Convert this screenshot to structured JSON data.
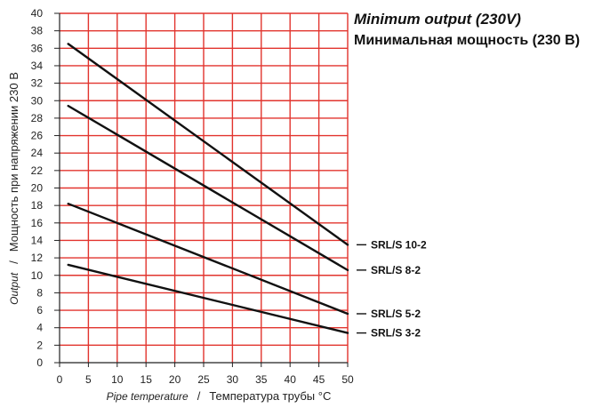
{
  "chart_data": {
    "type": "line",
    "title": "Minimum output (230V)",
    "subtitle": "Минимальная мощность (230 В)",
    "xlabel_en": "Pipe temperature",
    "xlabel_sep": "/",
    "xlabel_ru": "Температура трубы °C",
    "ylabel_en": "Output",
    "ylabel_sep": "/",
    "ylabel_ru": "Мощность при напряжении 230 В",
    "xlim": [
      0,
      50
    ],
    "ylim": [
      0,
      40
    ],
    "xticks": [
      0,
      5,
      10,
      15,
      20,
      25,
      30,
      35,
      40,
      45,
      50
    ],
    "yticks": [
      0,
      2,
      4,
      6,
      8,
      10,
      12,
      14,
      16,
      18,
      20,
      22,
      24,
      26,
      28,
      30,
      32,
      34,
      36,
      38,
      40
    ],
    "grid": true,
    "grid_color": "#e2342e",
    "line_color": "#111111",
    "legend_placement": "right",
    "series": [
      {
        "name": "SRL/S 10-2",
        "x": [
          1.5,
          50
        ],
        "y": [
          36.5,
          13.5
        ]
      },
      {
        "name": "SRL/S 8-2",
        "x": [
          1.5,
          50
        ],
        "y": [
          29.4,
          10.6
        ]
      },
      {
        "name": "SRL/S 5-2",
        "x": [
          1.5,
          50
        ],
        "y": [
          18.2,
          5.6
        ]
      },
      {
        "name": "SRL/S 3-2",
        "x": [
          1.5,
          50
        ],
        "y": [
          11.2,
          3.4
        ]
      }
    ]
  }
}
